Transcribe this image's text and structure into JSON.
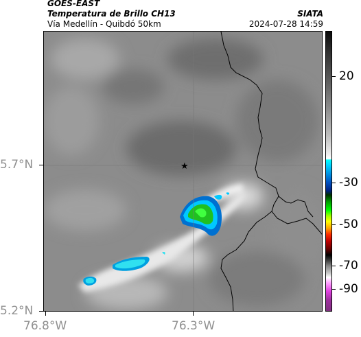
{
  "header": {
    "satellite": "GOES-EAST",
    "product": "Temperatura de Brillo CH13",
    "region": "Vía Medellín - Quibdó 50km",
    "agency": "SIATA",
    "timestamp": "2024-07-28 14:59"
  },
  "axes": {
    "y_labels": [
      "5.7°N",
      "5.2°N"
    ],
    "x_labels": [
      "76.8°W",
      "76.3°W"
    ]
  },
  "colorbar": {
    "tick_labels": [
      "20",
      "-30",
      "-50",
      "-70",
      "-90"
    ],
    "values": [
      20,
      -30,
      -50,
      -70,
      -90
    ]
  },
  "map": {
    "marker": "star-icon",
    "features": [
      "department-border",
      "cold-cloud-top-core",
      "cyan-cloud-patches"
    ]
  },
  "colors": {
    "background_gray": "#8a8a8a",
    "cold_core": "#20d020",
    "cloud_edge": "#00d8f0",
    "border_line": "#000000"
  }
}
